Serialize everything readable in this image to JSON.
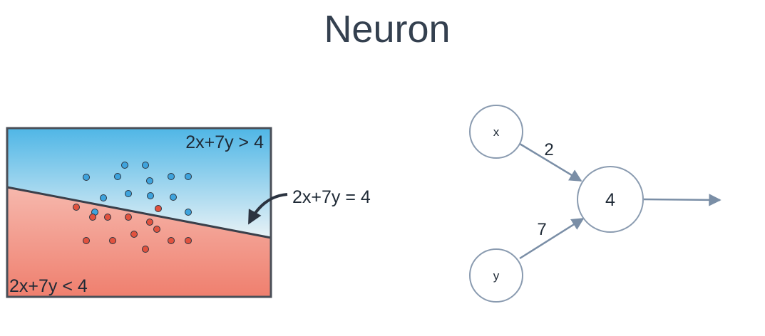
{
  "title": "Neuron",
  "region": {
    "upper_label": "2x+7y > 4",
    "lower_label": "2x+7y < 4",
    "line_label": "2x+7y = 4",
    "upper_color_top": "#4fb6e6",
    "upper_color_bottom": "#e8f2f6",
    "lower_color_top": "#f6b8ad",
    "lower_color_bottom": "#ef7f6e"
  },
  "points": {
    "blue_color": "#3ea3dd",
    "red_color": "#e2523e"
  },
  "neuron": {
    "inputs": [
      {
        "label": "x",
        "weight": "2"
      },
      {
        "label": "y",
        "weight": "7"
      }
    ],
    "bias_node_label": "4",
    "edge_color": "#7a8ea6"
  }
}
